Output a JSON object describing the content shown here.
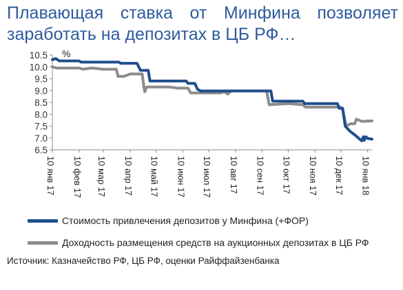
{
  "title": "Плавающая ставка от Минфина позволяет заработать на депозитах в ЦБ РФ…",
  "source": "Источник: Казначейство РФ, ЦБ РФ, оценки Райффайзенбанка",
  "chart_data": {
    "type": "line",
    "y_unit_label": "%",
    "ylim": [
      6.5,
      10.5
    ],
    "yticks": [
      "10.5",
      "10.0",
      "9.5",
      "9.0",
      "8.5",
      "8.0",
      "7.5",
      "7.0",
      "6.5"
    ],
    "xlim": [
      "2017-01-10",
      "2018-01-15"
    ],
    "xticks": [
      {
        "date": "2017-01-10",
        "label": "10 янв 17"
      },
      {
        "date": "2017-02-10",
        "label": "10 фев 17"
      },
      {
        "date": "2017-03-10",
        "label": "10 мар 17"
      },
      {
        "date": "2017-04-10",
        "label": "10 апр 17"
      },
      {
        "date": "2017-05-10",
        "label": "10 май 17"
      },
      {
        "date": "2017-06-10",
        "label": "10 июн 17"
      },
      {
        "date": "2017-07-10",
        "label": "10 июл 17"
      },
      {
        "date": "2017-08-10",
        "label": "10 авг 17"
      },
      {
        "date": "2017-09-10",
        "label": "10 сен 17"
      },
      {
        "date": "2017-10-10",
        "label": "10 окт 17"
      },
      {
        "date": "2017-11-10",
        "label": "10 ноя 17"
      },
      {
        "date": "2017-12-10",
        "label": "10 дек 17"
      },
      {
        "date": "2018-01-10",
        "label": "10 янв 18"
      }
    ],
    "grid": false,
    "legend_position": "bottom",
    "series": [
      {
        "name": "Стоимость привлечения депозитов у Минфина (+ФОР)",
        "color": "#1f4e8c",
        "points": [
          [
            "2017-01-10",
            10.3
          ],
          [
            "2017-01-14",
            10.35
          ],
          [
            "2017-01-18",
            10.25
          ],
          [
            "2017-02-10",
            10.25
          ],
          [
            "2017-02-12",
            10.2
          ],
          [
            "2017-03-28",
            10.2
          ],
          [
            "2017-03-30",
            10.15
          ],
          [
            "2017-04-18",
            10.15
          ],
          [
            "2017-04-22",
            9.85
          ],
          [
            "2017-05-01",
            9.85
          ],
          [
            "2017-05-03",
            9.4
          ],
          [
            "2017-06-14",
            9.4
          ],
          [
            "2017-06-16",
            9.3
          ],
          [
            "2017-06-24",
            9.3
          ],
          [
            "2017-06-27",
            9.05
          ],
          [
            "2017-07-01",
            8.98
          ],
          [
            "2017-09-20",
            8.98
          ],
          [
            "2017-09-22",
            8.55
          ],
          [
            "2017-10-27",
            8.55
          ],
          [
            "2017-10-29",
            8.45
          ],
          [
            "2017-12-06",
            8.45
          ],
          [
            "2017-12-08",
            8.25
          ],
          [
            "2017-12-12",
            8.25
          ],
          [
            "2017-12-15",
            7.5
          ],
          [
            "2017-12-20",
            7.3
          ],
          [
            "2017-12-27",
            7.1
          ],
          [
            "2018-01-03",
            6.88
          ],
          [
            "2018-01-05",
            7.05
          ],
          [
            "2018-01-06",
            6.9
          ],
          [
            "2018-01-08",
            7.05
          ],
          [
            "2018-01-10",
            6.98
          ],
          [
            "2018-01-15",
            6.95
          ]
        ]
      },
      {
        "name": "Доходность размещения средств на аукционных депозитах в ЦБ РФ",
        "color": "#8c8c8c",
        "points": [
          [
            "2017-01-10",
            10.0
          ],
          [
            "2017-01-15",
            9.95
          ],
          [
            "2017-02-10",
            9.95
          ],
          [
            "2017-02-14",
            9.9
          ],
          [
            "2017-02-25",
            9.95
          ],
          [
            "2017-03-10",
            9.9
          ],
          [
            "2017-03-25",
            9.9
          ],
          [
            "2017-03-27",
            9.6
          ],
          [
            "2017-04-03",
            9.6
          ],
          [
            "2017-04-10",
            9.7
          ],
          [
            "2017-04-24",
            9.7
          ],
          [
            "2017-04-26",
            9.15
          ],
          [
            "2017-04-27",
            8.95
          ],
          [
            "2017-04-29",
            9.15
          ],
          [
            "2017-05-25",
            9.15
          ],
          [
            "2017-06-05",
            9.1
          ],
          [
            "2017-06-16",
            9.1
          ],
          [
            "2017-06-19",
            8.9
          ],
          [
            "2017-07-24",
            8.9
          ],
          [
            "2017-07-28",
            8.95
          ],
          [
            "2017-08-01",
            8.85
          ],
          [
            "2017-08-05",
            8.98
          ],
          [
            "2017-09-15",
            8.98
          ],
          [
            "2017-09-18",
            8.4
          ],
          [
            "2017-10-10",
            8.45
          ],
          [
            "2017-10-27",
            8.4
          ],
          [
            "2017-10-30",
            8.3
          ],
          [
            "2017-12-10",
            8.3
          ],
          [
            "2017-12-12",
            8.2
          ],
          [
            "2017-12-16",
            7.5
          ],
          [
            "2017-12-21",
            7.6
          ],
          [
            "2017-12-26",
            7.6
          ],
          [
            "2017-12-28",
            7.8
          ],
          [
            "2018-01-03",
            7.7
          ],
          [
            "2018-01-15",
            7.72
          ]
        ]
      }
    ]
  }
}
